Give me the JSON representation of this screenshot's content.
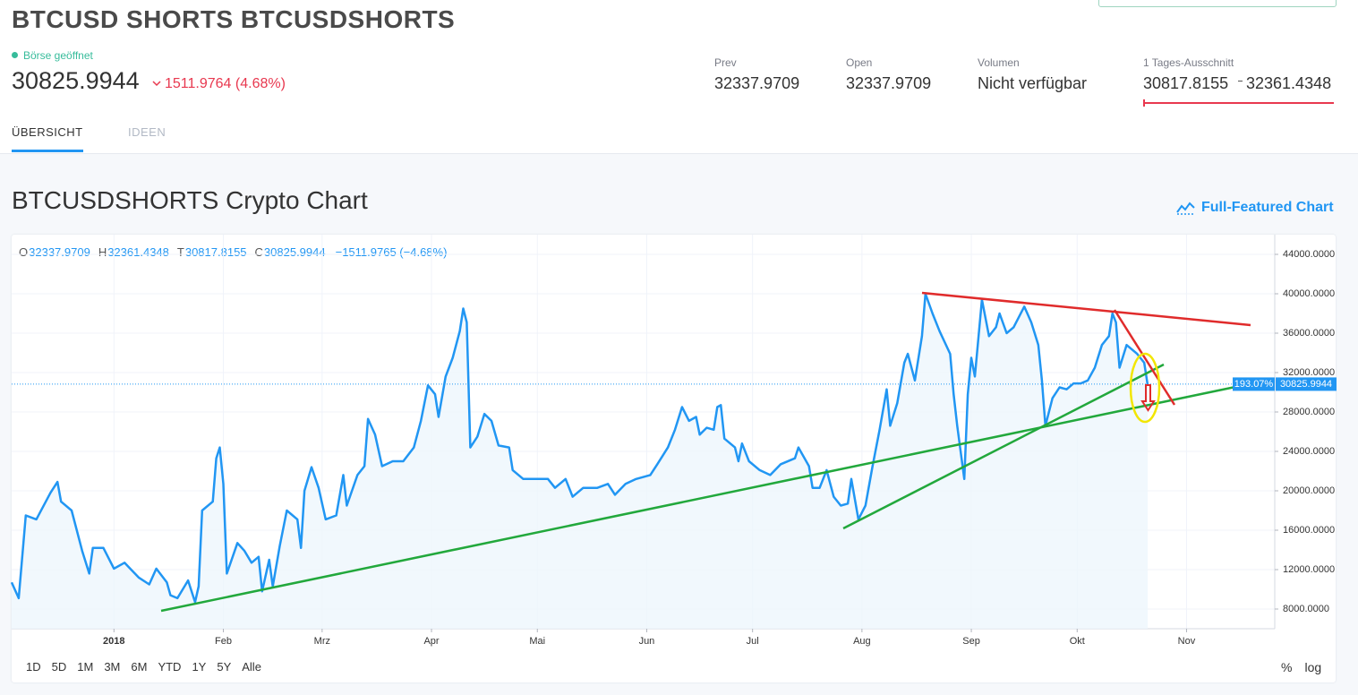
{
  "header": {
    "title": "BTCUSD SHORTS BTCUSDSHORTS",
    "status": "Börse geöffnet",
    "price": "30825.9944",
    "change": "1511.9764 (4.68%)",
    "stats": [
      {
        "label": "Prev",
        "value": "32337.9709"
      },
      {
        "label": "Open",
        "value": "32337.9709"
      },
      {
        "label": "Volumen",
        "value": "Nicht verfügbar"
      }
    ],
    "day_range": {
      "label": "1 Tages-Ausschnitt",
      "low": "30817.8155",
      "high": "32361.4348"
    }
  },
  "tabs": [
    "ÜBERSICHT",
    "IDEEN"
  ],
  "section_title": "BTCUSDSHORTS Crypto Chart",
  "full_chart_link": "Full-Featured Chart",
  "range_buttons": [
    "1D",
    "5D",
    "1M",
    "3M",
    "6M",
    "YTD",
    "1Y",
    "5Y",
    "Alle"
  ],
  "scale_buttons": [
    "%",
    "log"
  ],
  "chart_data": {
    "type": "line",
    "color": "#2196f3",
    "ohlc": [
      {
        "label": "O",
        "value": "32337.9709"
      },
      {
        "label": "H",
        "value": "32361.4348"
      },
      {
        "label": "T",
        "value": "30817.8155"
      },
      {
        "label": "C",
        "value": "30825.9944"
      }
    ],
    "ohlc_change": "−1511.9765 (−4.68%)",
    "last_value": 30825.9944,
    "last_percent": "193.07%",
    "xlim": [
      -29,
      329
    ],
    "ylim": [
      6000,
      46000
    ],
    "xticks": [
      {
        "value": 0,
        "label": "2018"
      },
      {
        "value": 31,
        "label": "Feb"
      },
      {
        "value": 59,
        "label": "Mrz"
      },
      {
        "value": 90,
        "label": "Apr"
      },
      {
        "value": 120,
        "label": "Mai"
      },
      {
        "value": 151,
        "label": "Jun"
      },
      {
        "value": 181,
        "label": "Jul"
      },
      {
        "value": 212,
        "label": "Aug"
      },
      {
        "value": 243,
        "label": "Sep"
      },
      {
        "value": 273,
        "label": "Okt"
      },
      {
        "value": 304,
        "label": "Nov"
      }
    ],
    "yticks": [
      {
        "value": 8000,
        "label": "8000.0000"
      },
      {
        "value": 12000,
        "label": "12000.0000"
      },
      {
        "value": 16000,
        "label": "16000.0000"
      },
      {
        "value": 20000,
        "label": "20000.0000"
      },
      {
        "value": 24000,
        "label": "24000.0000"
      },
      {
        "value": 28000,
        "label": "28000.0000"
      },
      {
        "value": 32000,
        "label": "32000.0000"
      },
      {
        "value": 36000,
        "label": "36000.0000"
      },
      {
        "value": 40000,
        "label": "40000.0000"
      },
      {
        "value": 44000,
        "label": "44000.0000"
      }
    ],
    "grid": true,
    "x": [
      -29,
      -27,
      -25,
      -22,
      -18,
      -16,
      -15,
      -12,
      -9,
      -7,
      -6,
      -3,
      0,
      3,
      7,
      10,
      12,
      15,
      16,
      18,
      21,
      23,
      24,
      25,
      28,
      29,
      30,
      31,
      32,
      35,
      37,
      39,
      41,
      42,
      44,
      45,
      47,
      49,
      52,
      53,
      54,
      56,
      58,
      60,
      63,
      65,
      66,
      69,
      71,
      72,
      74,
      76,
      79,
      82,
      85,
      87,
      89,
      91,
      92,
      94,
      96,
      98,
      99,
      100,
      101,
      103,
      105,
      107,
      109,
      112,
      113,
      116,
      119,
      123,
      125,
      128,
      130,
      133,
      137,
      140,
      142,
      145,
      148,
      152,
      154,
      157,
      159,
      161,
      163,
      165,
      166,
      168,
      170,
      171,
      172,
      173,
      176,
      177,
      178,
      180,
      183,
      186,
      189,
      193,
      194,
      197,
      198,
      200,
      202,
      204,
      206,
      208,
      209,
      211,
      213,
      215,
      217,
      219,
      220,
      222,
      224,
      225,
      227,
      229,
      230,
      232,
      234,
      237,
      238,
      239,
      241,
      242,
      243,
      244,
      246,
      248,
      250,
      251,
      253,
      255,
      258,
      260,
      262,
      263,
      264,
      266,
      268,
      270,
      272,
      274,
      276,
      278,
      280,
      282,
      283,
      284,
      285,
      287,
      290,
      292,
      293
    ],
    "values": [
      10700,
      9100,
      17500,
      17100,
      19800,
      20900,
      18900,
      18000,
      13900,
      11600,
      14200,
      14200,
      12100,
      12700,
      11200,
      10500,
      12100,
      10700,
      9400,
      9100,
      10900,
      8700,
      10300,
      18000,
      18900,
      23300,
      24400,
      20700,
      11600,
      14700,
      13900,
      12700,
      13300,
      9800,
      13000,
      10300,
      14400,
      18000,
      17100,
      14200,
      20000,
      22400,
      20300,
      17100,
      17500,
      21600,
      18500,
      21600,
      22500,
      27300,
      25700,
      22500,
      23000,
      23000,
      24400,
      27100,
      30700,
      29800,
      27500,
      31600,
      33500,
      36200,
      38500,
      37100,
      24400,
      25500,
      27800,
      27100,
      24600,
      24400,
      22100,
      21200,
      21200,
      21200,
      20300,
      21200,
      19400,
      20300,
      20300,
      20700,
      19600,
      20700,
      21200,
      21600,
      22700,
      24400,
      26200,
      28500,
      27100,
      27500,
      25700,
      26400,
      26200,
      28500,
      28700,
      25300,
      24400,
      23000,
      24800,
      23000,
      22100,
      21600,
      22700,
      23300,
      24400,
      22500,
      20300,
      20300,
      22100,
      19400,
      18500,
      18700,
      21200,
      17100,
      18500,
      22500,
      26200,
      30300,
      26600,
      28900,
      33000,
      33900,
      31200,
      35700,
      40000,
      38000,
      36200,
      33900,
      29800,
      26600,
      21200,
      29800,
      33500,
      31600,
      39400,
      35700,
      36600,
      38000,
      36000,
      36600,
      38700,
      37100,
      34800,
      31200,
      26600,
      29400,
      30500,
      30300,
      30900,
      30900,
      31200,
      32500,
      34800,
      35700,
      38000,
      37100,
      32500,
      34800,
      33900,
      33000,
      30700
    ]
  }
}
